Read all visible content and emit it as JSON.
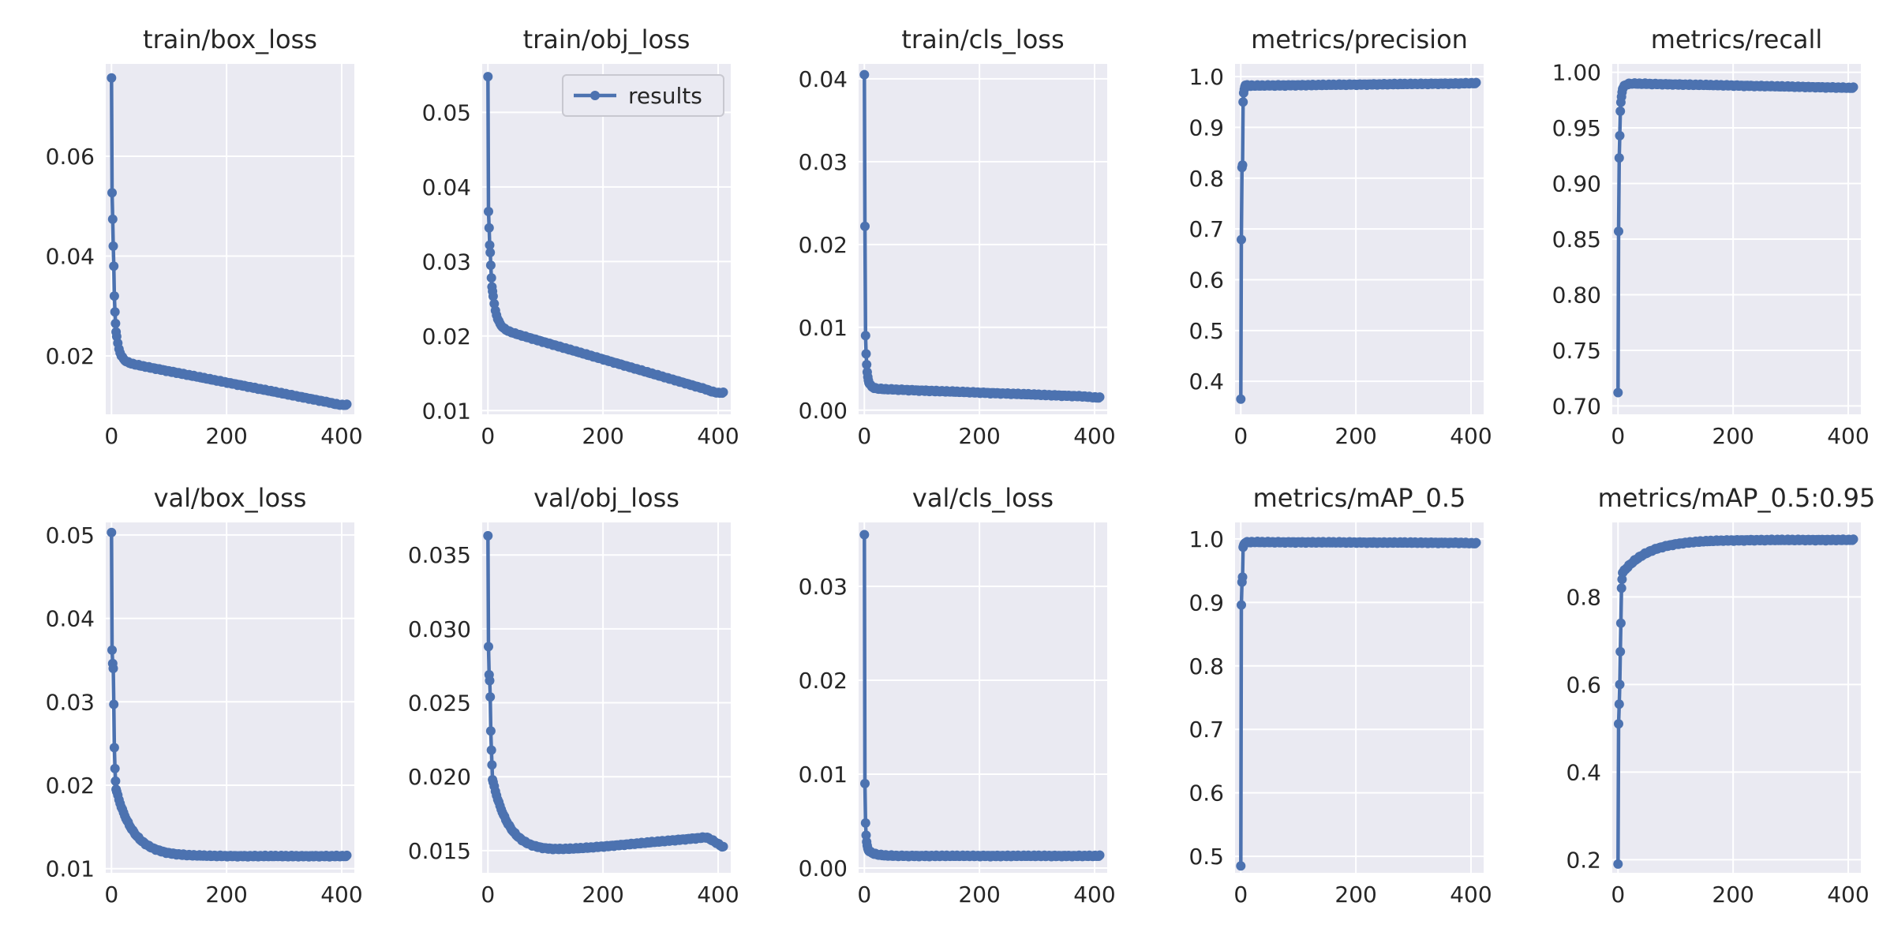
{
  "figure": {
    "series_color": "#4c72b0",
    "panel_bg": "#eaeaf2",
    "legend": {
      "label": "results",
      "placement": "upper-right",
      "panel": 1
    }
  },
  "chart_data": [
    {
      "type": "line",
      "title": "train/box_loss",
      "xlim": [
        -10,
        422
      ],
      "ylim": [
        0.0083,
        0.0785
      ],
      "xticks": [
        0,
        200,
        400
      ],
      "xtick_labels": [
        "0",
        "200",
        "400"
      ],
      "yticks": [
        0.02,
        0.04,
        0.06
      ],
      "ytick_labels": [
        "0.02",
        "0.04",
        "0.06"
      ],
      "series": [
        {
          "name": "results",
          "curve": "decay",
          "start": [
            0.0757,
            0.0527,
            0.0474,
            0.042,
            0.038,
            0.032,
            0.0288,
            0.0265,
            0.0248
          ],
          "plateau": 0.019,
          "tau": 6,
          "slope": -2.25e-05,
          "end": 0.0102
        }
      ]
    },
    {
      "type": "line",
      "title": "train/obj_loss",
      "xlim": [
        -10,
        422
      ],
      "ylim": [
        0.0095,
        0.0565
      ],
      "xticks": [
        0,
        200,
        400
      ],
      "xtick_labels": [
        "0",
        "200",
        "400"
      ],
      "yticks": [
        0.01,
        0.02,
        0.03,
        0.04,
        0.05
      ],
      "ytick_labels": [
        "0.01",
        "0.02",
        "0.03",
        "0.04",
        "0.05"
      ],
      "series": [
        {
          "name": "results",
          "curve": "decay",
          "start": [
            0.0548,
            0.0367,
            0.0345,
            0.0322,
            0.0312,
            0.0295,
            0.0278,
            0.0266,
            0.026
          ],
          "plateau": 0.0212,
          "tau": 7,
          "slope": -2.25e-05,
          "end": 0.0124
        }
      ]
    },
    {
      "type": "line",
      "title": "train/cls_loss",
      "xlim": [
        -10,
        422
      ],
      "ylim": [
        -0.0005,
        0.0418
      ],
      "xticks": [
        0,
        200,
        400
      ],
      "xtick_labels": [
        "0",
        "200",
        "400"
      ],
      "yticks": [
        0.0,
        0.01,
        0.02,
        0.03,
        0.04
      ],
      "ytick_labels": [
        "0.00",
        "0.01",
        "0.02",
        "0.03",
        "0.04"
      ],
      "series": [
        {
          "name": "results",
          "curve": "decay",
          "start": [
            0.0405,
            0.0222,
            0.009,
            0.0068,
            0.0055,
            0.0046,
            0.004,
            0.0036,
            0.0033
          ],
          "plateau": 0.0026,
          "tau": 5,
          "slope": -2.5e-06,
          "end": 0.0015
        }
      ]
    },
    {
      "type": "line",
      "title": "metrics/precision",
      "xlim": [
        -10,
        422
      ],
      "ylim": [
        0.335,
        1.025
      ],
      "xticks": [
        0,
        200,
        400
      ],
      "xtick_labels": [
        "0",
        "200",
        "400"
      ],
      "yticks": [
        0.4,
        0.5,
        0.6,
        0.7,
        0.8,
        0.9,
        1.0
      ],
      "ytick_labels": [
        "0.4",
        "0.5",
        "0.6",
        "0.7",
        "0.8",
        "0.9",
        "1.0"
      ],
      "series": [
        {
          "name": "results",
          "curve": "rise",
          "start": [
            0.365,
            0.679,
            0.821,
            0.826,
            0.95,
            0.968,
            0.975,
            0.98,
            0.983
          ],
          "plateau": 0.982,
          "tau": 4,
          "slope": 1.2e-05,
          "end": 0.987
        }
      ]
    },
    {
      "type": "line",
      "title": "metrics/recall",
      "xlim": [
        -10,
        422
      ],
      "ylim": [
        0.6925,
        1.0075
      ],
      "xticks": [
        0,
        200,
        400
      ],
      "xtick_labels": [
        "0",
        "200",
        "400"
      ],
      "yticks": [
        0.7,
        0.75,
        0.8,
        0.85,
        0.9,
        0.95,
        1.0
      ],
      "ytick_labels": [
        "0.70",
        "0.75",
        "0.80",
        "0.85",
        "0.90",
        "0.95",
        "1.00"
      ],
      "series": [
        {
          "name": "results",
          "curve": "rise",
          "start": [
            0.712,
            0.857,
            0.923,
            0.943,
            0.965,
            0.973,
            0.978,
            0.982,
            0.985
          ],
          "plateau": 0.99,
          "tau": 4,
          "slope": -1e-05,
          "end": 0.986
        }
      ]
    },
    {
      "type": "line",
      "title": "val/box_loss",
      "xlim": [
        -10,
        422
      ],
      "ylim": [
        0.0095,
        0.0515
      ],
      "xticks": [
        0,
        200,
        400
      ],
      "xtick_labels": [
        "0",
        "200",
        "400"
      ],
      "yticks": [
        0.01,
        0.02,
        0.03,
        0.04,
        0.05
      ],
      "ytick_labels": [
        "0.01",
        "0.02",
        "0.03",
        "0.04",
        "0.05"
      ],
      "series": [
        {
          "name": "results",
          "curve": "decay",
          "start": [
            0.0503,
            0.0362,
            0.0346,
            0.034,
            0.0297,
            0.0245,
            0.022,
            0.0205,
            0.0195
          ],
          "plateau": 0.0115,
          "tau": 30,
          "slope": 0.0,
          "end": 0.0115
        }
      ]
    },
    {
      "type": "line",
      "title": "val/obj_loss",
      "xlim": [
        -10,
        422
      ],
      "ylim": [
        0.0135,
        0.0372
      ],
      "xticks": [
        0,
        200,
        400
      ],
      "xtick_labels": [
        "0",
        "200",
        "400"
      ],
      "yticks": [
        0.015,
        0.02,
        0.025,
        0.03,
        0.035
      ],
      "ytick_labels": [
        "0.015",
        "0.020",
        "0.025",
        "0.030",
        "0.035"
      ],
      "series": [
        {
          "name": "results",
          "curve": "decay",
          "start": [
            0.0363,
            0.0288,
            0.0269,
            0.0265,
            0.0254,
            0.0231,
            0.0218,
            0.0208,
            0.0198
          ],
          "plateau": 0.0146,
          "tau": 30,
          "slope": 3.5e-06,
          "end": 0.0152
        }
      ]
    },
    {
      "type": "line",
      "title": "val/cls_loss",
      "xlim": [
        -10,
        422
      ],
      "ylim": [
        -0.0005,
        0.0368
      ],
      "xticks": [
        0,
        200,
        400
      ],
      "xtick_labels": [
        "0",
        "200",
        "400"
      ],
      "yticks": [
        0.0,
        0.01,
        0.02,
        0.03
      ],
      "ytick_labels": [
        "0.00",
        "0.01",
        "0.02",
        "0.03"
      ],
      "series": [
        {
          "name": "results",
          "curve": "decay",
          "start": [
            0.0355,
            0.009,
            0.0048,
            0.0035,
            0.0028,
            0.0024,
            0.0021,
            0.0019,
            0.0018
          ],
          "plateau": 0.0013,
          "tau": 12,
          "slope": 0.0,
          "end": 0.0013
        }
      ]
    },
    {
      "type": "line",
      "title": "metrics/mAP_0.5",
      "xlim": [
        -10,
        422
      ],
      "ylim": [
        0.474,
        1.026
      ],
      "xticks": [
        0,
        200,
        400
      ],
      "xtick_labels": [
        "0",
        "200",
        "400"
      ],
      "yticks": [
        0.5,
        0.6,
        0.7,
        0.8,
        0.9,
        1.0
      ],
      "ytick_labels": [
        "0.5",
        "0.6",
        "0.7",
        "0.8",
        "0.9",
        "1.0"
      ],
      "series": [
        {
          "name": "results",
          "curve": "rise",
          "start": [
            0.485,
            0.896,
            0.932,
            0.94,
            0.987,
            0.99,
            0.992,
            0.993,
            0.994
          ],
          "plateau": 0.995,
          "tau": 3,
          "slope": -3e-06,
          "end": 0.993
        }
      ]
    },
    {
      "type": "line",
      "title": "metrics/mAP_0.5:0.95",
      "xlim": [
        -10,
        422
      ],
      "ylim": [
        0.17,
        0.97
      ],
      "xticks": [
        0,
        200,
        400
      ],
      "xtick_labels": [
        "0",
        "200",
        "400"
      ],
      "yticks": [
        0.2,
        0.4,
        0.6,
        0.8
      ],
      "ytick_labels": [
        "0.2",
        "0.4",
        "0.6",
        "0.8"
      ],
      "series": [
        {
          "name": "results",
          "curve": "rise",
          "start": [
            0.19,
            0.51,
            0.555,
            0.6,
            0.675,
            0.74,
            0.82,
            0.84,
            0.855
          ],
          "plateau": 0.93,
          "tau": 45,
          "slope": 0.0,
          "end": 0.93
        }
      ]
    }
  ]
}
